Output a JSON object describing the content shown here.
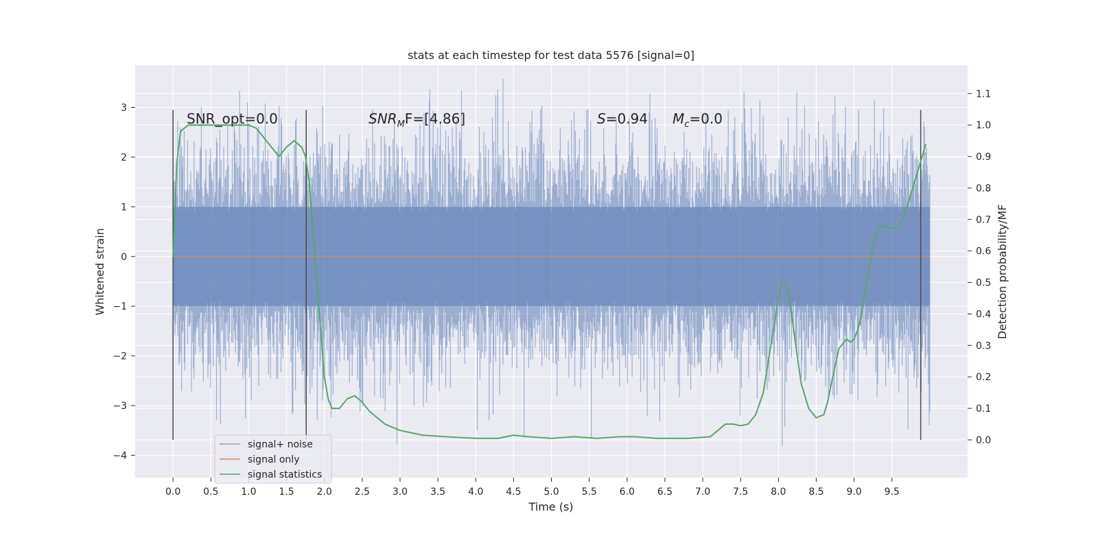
{
  "chart_data": {
    "type": "line",
    "title": "stats at each timestep for test data 5576 [signal=0]",
    "xlabel": "Time (s)",
    "ylabel": "Whitened strain",
    "y2label": "Detection probability/MF",
    "xlim": [
      -0.5,
      10.5
    ],
    "ylim": [
      -4.45,
      3.85
    ],
    "y2lim": [
      -0.12,
      1.19
    ],
    "xticks": [
      "0.0",
      "0.5",
      "1.0",
      "1.5",
      "2.0",
      "2.5",
      "3.0",
      "3.5",
      "4.0",
      "4.5",
      "5.0",
      "5.5",
      "6.0",
      "6.5",
      "7.0",
      "7.5",
      "8.0",
      "8.5",
      "9.0",
      "9.5"
    ],
    "yticks": [
      "3",
      "2",
      "1",
      "0",
      "−1",
      "−2",
      "−3",
      "−4"
    ],
    "y2ticks": [
      "0.0",
      "0.1",
      "0.2",
      "0.3",
      "0.4",
      "0.5",
      "0.6",
      "0.7",
      "0.8",
      "0.9",
      "1.0",
      "1.1"
    ],
    "grid": true,
    "legend_position": "lower-left",
    "series": [
      {
        "name": "signal+ noise",
        "color": "#4c72b0",
        "description_range": [
          -4.05,
          3.57
        ],
        "x_range": [
          0.0,
          10.0
        ],
        "axis": "left"
      },
      {
        "name": "signal only",
        "color": "#dd8452",
        "x": [
          0.0,
          10.0
        ],
        "y": [
          0.0,
          0.0
        ],
        "axis": "left"
      },
      {
        "name": "signal statistics",
        "color": "#55a868",
        "axis": "right",
        "x": [
          0.0,
          0.05,
          0.1,
          0.2,
          0.3,
          0.5,
          0.8,
          1.0,
          1.1,
          1.2,
          1.3,
          1.4,
          1.5,
          1.6,
          1.7,
          1.75,
          1.8,
          1.9,
          2.0,
          2.05,
          2.1,
          2.2,
          2.3,
          2.4,
          2.5,
          2.6,
          2.8,
          3.0,
          3.3,
          3.6,
          4.0,
          4.3,
          4.5,
          4.7,
          5.0,
          5.3,
          5.6,
          5.9,
          6.1,
          6.4,
          6.8,
          7.1,
          7.2,
          7.3,
          7.4,
          7.5,
          7.6,
          7.7,
          7.8,
          7.9,
          8.0,
          8.05,
          8.1,
          8.15,
          8.2,
          8.3,
          8.4,
          8.5,
          8.6,
          8.65,
          8.7,
          8.8,
          8.9,
          8.95,
          9.0,
          9.05,
          9.1,
          9.2,
          9.3,
          9.4,
          9.5,
          9.6,
          9.7,
          9.8,
          9.9,
          9.95
        ],
        "y": [
          0.58,
          0.88,
          0.98,
          1.0,
          1.0,
          1.0,
          1.0,
          1.0,
          0.99,
          0.96,
          0.93,
          0.9,
          0.93,
          0.95,
          0.93,
          0.9,
          0.82,
          0.5,
          0.2,
          0.13,
          0.1,
          0.1,
          0.13,
          0.14,
          0.12,
          0.09,
          0.05,
          0.03,
          0.015,
          0.01,
          0.005,
          0.005,
          0.015,
          0.01,
          0.005,
          0.01,
          0.005,
          0.01,
          0.01,
          0.005,
          0.005,
          0.01,
          0.03,
          0.05,
          0.05,
          0.045,
          0.05,
          0.08,
          0.15,
          0.3,
          0.45,
          0.5,
          0.5,
          0.45,
          0.35,
          0.18,
          0.1,
          0.07,
          0.08,
          0.12,
          0.18,
          0.29,
          0.32,
          0.31,
          0.32,
          0.35,
          0.4,
          0.55,
          0.67,
          0.68,
          0.67,
          0.68,
          0.74,
          0.82,
          0.9,
          0.94
        ]
      }
    ],
    "vertical_markers_x": [
      0.0,
      1.76,
      9.88
    ],
    "annotations": {
      "snr_opt": "SNR_opt=0.0",
      "snr_mf_main": "SNR",
      "snr_mf_sub": "M",
      "snr_mf_rest": "F=[4.86]",
      "s_main": "S",
      "s_rest": "=0.94",
      "mc_main": "M",
      "mc_sub": "c",
      "mc_rest": "=0.0"
    }
  }
}
